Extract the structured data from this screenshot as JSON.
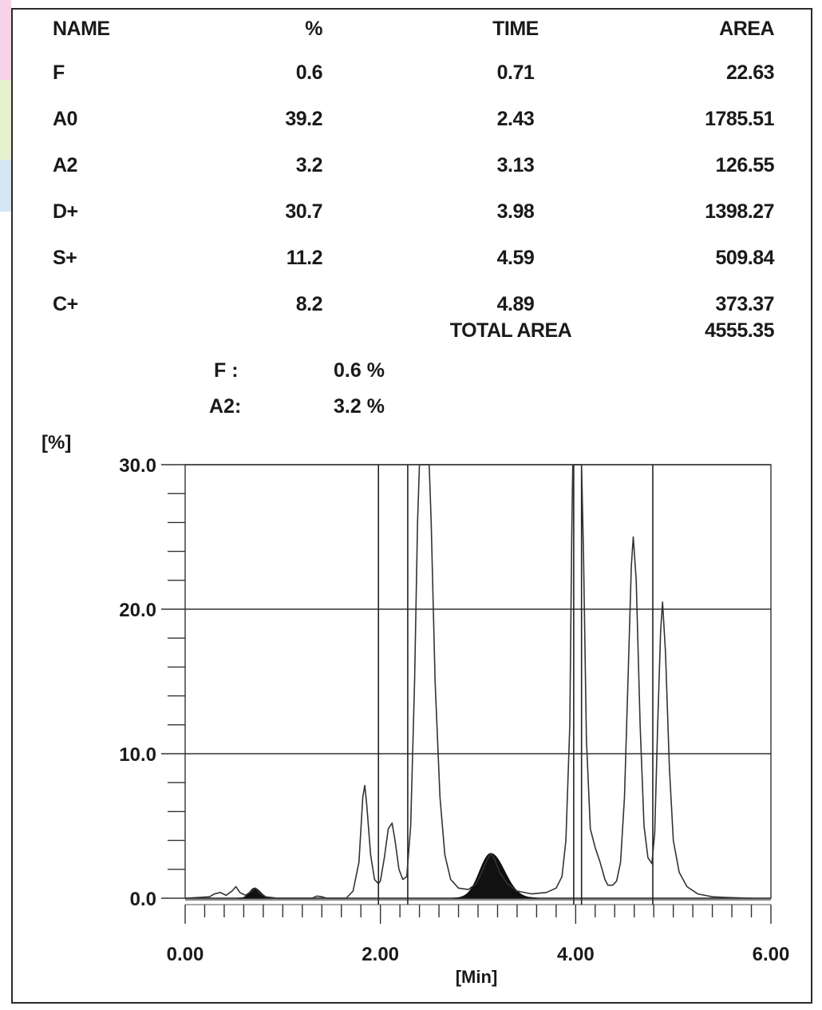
{
  "table": {
    "headers": {
      "name": "NAME",
      "percent": "%",
      "time": "TIME",
      "area": "AREA"
    },
    "rows": [
      {
        "name": "F",
        "percent": "0.6",
        "time": "0.71",
        "area": "22.63"
      },
      {
        "name": "A0",
        "percent": "39.2",
        "time": "2.43",
        "area": "1785.51"
      },
      {
        "name": "A2",
        "percent": "3.2",
        "time": "3.13",
        "area": "126.55"
      },
      {
        "name": "D+",
        "percent": "30.7",
        "time": "3.98",
        "area": "1398.27"
      },
      {
        "name": "S+",
        "percent": "11.2",
        "time": "4.59",
        "area": "509.84"
      },
      {
        "name": "C+",
        "percent": "8.2",
        "time": "4.89",
        "area": "373.37"
      }
    ],
    "total_label": "TOTAL AREA",
    "total_value": "4555.35"
  },
  "summary": [
    {
      "label": "F :",
      "value": "0.6 %"
    },
    {
      "label": "A2:",
      "value": "3.2 %"
    }
  ],
  "chart_data": {
    "type": "line",
    "ylabel": "[%]",
    "xlabel": "[Min]",
    "xlim": [
      0,
      6
    ],
    "ylim": [
      0,
      30
    ],
    "x_ticks": [
      "0.00",
      "2.00",
      "4.00",
      "6.00"
    ],
    "y_ticks": [
      "0.0",
      "10.0",
      "20.0",
      "30.0"
    ],
    "grid": true,
    "series": [
      {
        "points": [
          [
            0.0,
            0.0
          ],
          [
            0.25,
            0.1
          ],
          [
            0.3,
            0.3
          ],
          [
            0.36,
            0.4
          ],
          [
            0.42,
            0.2
          ],
          [
            0.48,
            0.5
          ],
          [
            0.52,
            0.8
          ],
          [
            0.56,
            0.4
          ],
          [
            0.62,
            0.2
          ],
          [
            0.68,
            0.5
          ],
          [
            0.72,
            0.7
          ],
          [
            0.76,
            0.4
          ],
          [
            0.82,
            0.1
          ],
          [
            0.95,
            0.0
          ],
          [
            1.3,
            0.0
          ],
          [
            1.35,
            0.15
          ],
          [
            1.4,
            0.1
          ],
          [
            1.45,
            0.0
          ],
          [
            1.65,
            0.0
          ],
          [
            1.72,
            0.5
          ],
          [
            1.78,
            2.5
          ],
          [
            1.82,
            7.0
          ],
          [
            1.84,
            7.8
          ],
          [
            1.86,
            6.5
          ],
          [
            1.9,
            3.0
          ],
          [
            1.94,
            1.3
          ],
          [
            1.98,
            1.0
          ],
          [
            2.0,
            1.2
          ],
          [
            2.04,
            2.8
          ],
          [
            2.08,
            4.8
          ],
          [
            2.12,
            5.2
          ],
          [
            2.15,
            4.0
          ],
          [
            2.19,
            2.0
          ],
          [
            2.23,
            1.3
          ],
          [
            2.27,
            1.5
          ],
          [
            2.31,
            5.0
          ],
          [
            2.35,
            15.0
          ],
          [
            2.38,
            26.0
          ],
          [
            2.4,
            32.0
          ],
          [
            2.5,
            32.0
          ],
          [
            2.52,
            26.0
          ],
          [
            2.56,
            15.0
          ],
          [
            2.61,
            7.0
          ],
          [
            2.66,
            3.0
          ],
          [
            2.72,
            1.3
          ],
          [
            2.8,
            0.7
          ],
          [
            2.9,
            0.6
          ],
          [
            2.98,
            1.0
          ],
          [
            3.04,
            1.8
          ],
          [
            3.09,
            2.6
          ],
          [
            3.13,
            3.1
          ],
          [
            3.17,
            2.7
          ],
          [
            3.22,
            1.8
          ],
          [
            3.3,
            1.0
          ],
          [
            3.4,
            0.5
          ],
          [
            3.55,
            0.3
          ],
          [
            3.7,
            0.4
          ],
          [
            3.8,
            0.7
          ],
          [
            3.86,
            1.5
          ],
          [
            3.9,
            4.0
          ],
          [
            3.94,
            12.0
          ],
          [
            3.96,
            25.0
          ],
          [
            3.97,
            32.0
          ],
          [
            4.06,
            32.0
          ],
          [
            4.08,
            24.0
          ],
          [
            4.11,
            11.0
          ],
          [
            4.15,
            4.8
          ],
          [
            4.2,
            3.5
          ],
          [
            4.25,
            2.5
          ],
          [
            4.3,
            1.3
          ],
          [
            4.33,
            0.9
          ],
          [
            4.38,
            0.9
          ],
          [
            4.42,
            1.2
          ],
          [
            4.46,
            2.5
          ],
          [
            4.5,
            7.0
          ],
          [
            4.54,
            16.0
          ],
          [
            4.57,
            23.0
          ],
          [
            4.59,
            25.0
          ],
          [
            4.62,
            22.0
          ],
          [
            4.66,
            12.0
          ],
          [
            4.7,
            5.0
          ],
          [
            4.74,
            2.8
          ],
          [
            4.78,
            2.4
          ],
          [
            4.81,
            4.5
          ],
          [
            4.84,
            12.0
          ],
          [
            4.87,
            18.5
          ],
          [
            4.89,
            20.5
          ],
          [
            4.92,
            17.0
          ],
          [
            4.96,
            9.0
          ],
          [
            5.0,
            4.0
          ],
          [
            5.06,
            1.8
          ],
          [
            5.14,
            0.8
          ],
          [
            5.25,
            0.3
          ],
          [
            5.4,
            0.1
          ],
          [
            5.55,
            0.05
          ],
          [
            5.8,
            0.0
          ]
        ]
      }
    ],
    "peak_markers": [
      1.98,
      2.28,
      3.98,
      4.06,
      4.79
    ],
    "shaded_peaks": [
      {
        "name": "F",
        "time": 0.71,
        "height": 0.7
      },
      {
        "name": "A2",
        "time": 3.13,
        "height": 3.1
      }
    ]
  }
}
